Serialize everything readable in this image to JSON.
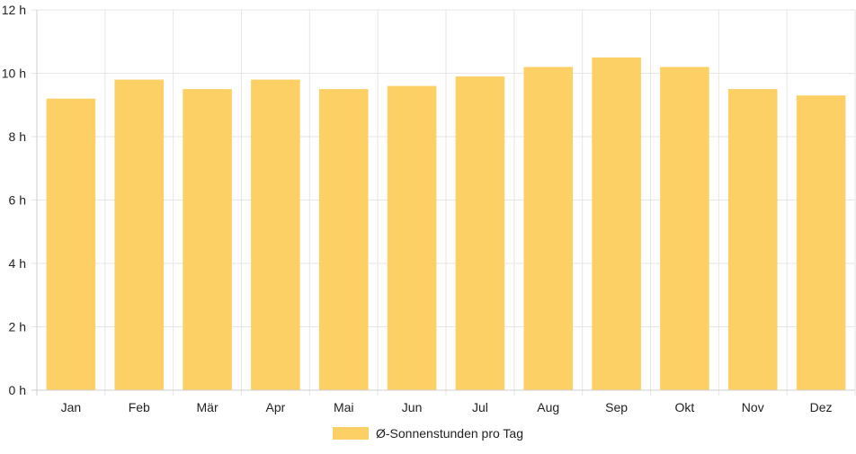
{
  "chart_data": {
    "type": "bar",
    "categories": [
      "Jan",
      "Feb",
      "Mär",
      "Apr",
      "Mai",
      "Jun",
      "Jul",
      "Aug",
      "Sep",
      "Okt",
      "Nov",
      "Dez"
    ],
    "series": [
      {
        "name": "Ø-Sonnenstunden pro Tag",
        "values": [
          9.2,
          9.8,
          9.5,
          9.8,
          9.5,
          9.6,
          9.9,
          10.2,
          10.5,
          10.2,
          9.5,
          9.3
        ],
        "color": "#fdd066"
      }
    ],
    "y_ticks": [
      "0 h",
      "2 h",
      "4 h",
      "6 h",
      "8 h",
      "10 h",
      "12 h"
    ],
    "ylim": [
      0,
      12
    ],
    "y_tick_step": 2,
    "grid": true,
    "grid_color": "#e6e6e6",
    "legend_position": "bottom"
  }
}
